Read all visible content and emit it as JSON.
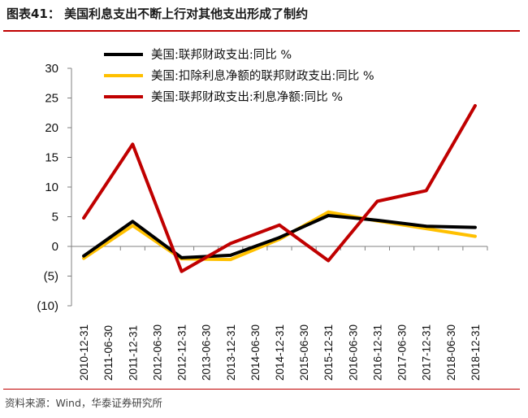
{
  "figure": {
    "label": "图表41：",
    "title": "美国利息支出不断上行对其他支出形成了制约",
    "source": "资料来源：Wind，华泰证券研究所"
  },
  "chart_data": {
    "type": "line",
    "categories": [
      "2010-12-31",
      "2011-06-30",
      "2011-12-31",
      "2012-06-30",
      "2012-12-31",
      "2013-06-30",
      "2013-12-31",
      "2014-06-30",
      "2014-12-31",
      "2015-06-30",
      "2015-12-31",
      "2016-06-30",
      "2016-12-31",
      "2017-06-30",
      "2017-12-31",
      "2018-06-30",
      "2018-12-31"
    ],
    "y_tick_labels": [
      "30",
      "25",
      "20",
      "15",
      "10",
      "5",
      "0",
      "(5)",
      "(10)"
    ],
    "ylim": [
      -10,
      30
    ],
    "grid": false,
    "legend_position": "top",
    "series": [
      {
        "name": "美国:联邦财政支出:同比 %",
        "color": "#000000",
        "values": [
          -1.6,
          null,
          4.2,
          null,
          -1.9,
          null,
          -1.5,
          null,
          1.5,
          null,
          5.2,
          null,
          4.4,
          null,
          3.4,
          null,
          3.2
        ]
      },
      {
        "name": "美国:扣除利息净额的联邦财政支出:同比 %",
        "color": "#ffc000",
        "values": [
          -2.0,
          null,
          3.5,
          null,
          -2.1,
          null,
          -2.2,
          null,
          1.2,
          null,
          5.8,
          null,
          4.3,
          null,
          3.0,
          null,
          1.7
        ]
      },
      {
        "name": "美国:联邦财政支出:利息净额:同比 %",
        "color": "#c00000",
        "values": [
          4.8,
          null,
          17.2,
          null,
          -4.2,
          null,
          0.5,
          null,
          3.6,
          null,
          -2.4,
          null,
          7.6,
          null,
          9.4,
          null,
          23.7
        ]
      }
    ]
  }
}
